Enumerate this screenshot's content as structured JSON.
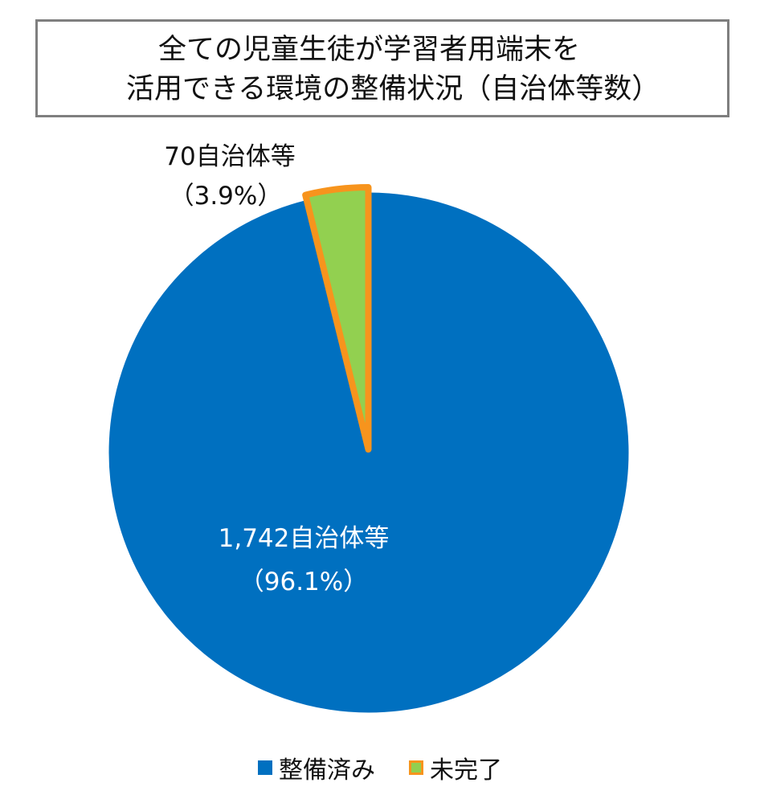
{
  "title": {
    "line1": "全ての児童生徒が学習者用端末を",
    "line2": "活用できる環境の整備状況（自治体等数）"
  },
  "chart_data": {
    "type": "pie",
    "title": "全ての児童生徒が学習者用端末を 活用できる環境の整備状況（自治体等数）",
    "unit": "自治体等",
    "slices": [
      {
        "name": "整備済み",
        "value": 1742,
        "percent": 96.1,
        "label_count": "1,742自治体等",
        "label_percent": "（96.1%）",
        "fill": "#0070c0",
        "stroke": "#0070c0",
        "label_color": "#ffffff"
      },
      {
        "name": "未完了",
        "value": 70,
        "percent": 3.9,
        "label_count": "70自治体等",
        "label_percent": "（3.9%）",
        "fill": "#92d050",
        "stroke": "#f7941d",
        "label_color": "#111111"
      }
    ],
    "start_angle": "12 o'clock",
    "direction": "clockwise",
    "legend_position": "bottom",
    "legend": [
      "整備済み",
      "未完了"
    ]
  }
}
